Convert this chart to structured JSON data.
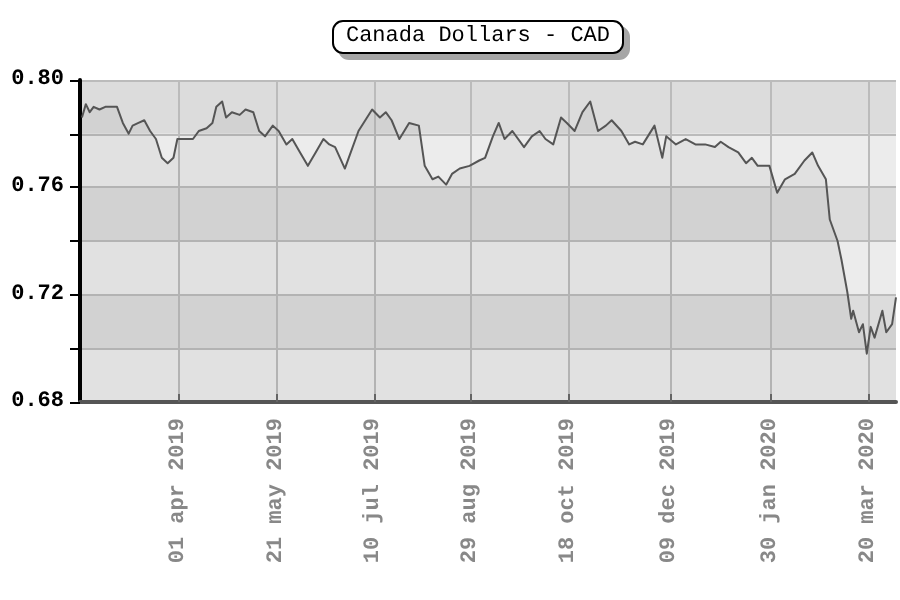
{
  "chart_data": {
    "type": "area",
    "title": "Canada Dollars - CAD",
    "x": [
      "2019-02-10",
      "2019-02-12",
      "2019-02-14",
      "2019-02-16",
      "2019-02-19",
      "2019-02-22",
      "2019-02-26",
      "2019-02-28",
      "2019-03-03",
      "2019-03-06",
      "2019-03-08",
      "2019-03-11",
      "2019-03-14",
      "2019-03-17",
      "2019-03-20",
      "2019-03-23",
      "2019-03-26",
      "2019-03-29",
      "2019-03-31",
      "2019-04-04",
      "2019-04-08",
      "2019-04-11",
      "2019-04-15",
      "2019-04-18",
      "2019-04-20",
      "2019-04-23",
      "2019-04-25",
      "2019-04-28",
      "2019-05-02",
      "2019-05-05",
      "2019-05-09",
      "2019-05-12",
      "2019-05-15",
      "2019-05-19",
      "2019-05-22",
      "2019-05-26",
      "2019-05-29",
      "2019-06-02",
      "2019-06-06",
      "2019-06-10",
      "2019-06-14",
      "2019-06-17",
      "2019-06-20",
      "2019-06-25",
      "2019-06-27",
      "2019-07-02",
      "2019-07-09",
      "2019-07-13",
      "2019-07-16",
      "2019-07-19",
      "2019-07-23",
      "2019-07-28",
      "2019-08-02",
      "2019-08-05",
      "2019-08-09",
      "2019-08-12",
      "2019-08-16",
      "2019-08-19",
      "2019-08-23",
      "2019-08-28",
      "2019-09-02",
      "2019-09-05",
      "2019-09-09",
      "2019-09-12",
      "2019-09-15",
      "2019-09-19",
      "2019-09-25",
      "2019-09-29",
      "2019-10-03",
      "2019-10-06",
      "2019-10-10",
      "2019-10-14",
      "2019-10-17",
      "2019-10-21",
      "2019-10-25",
      "2019-10-29",
      "2019-11-02",
      "2019-11-06",
      "2019-11-09",
      "2019-11-14",
      "2019-11-18",
      "2019-11-21",
      "2019-11-25",
      "2019-12-01",
      "2019-12-05",
      "2019-12-07",
      "2019-12-12",
      "2019-12-17",
      "2019-12-22",
      "2019-12-27",
      "2020-01-01",
      "2020-01-04",
      "2020-01-08",
      "2020-01-13",
      "2020-01-17",
      "2020-01-20",
      "2020-01-23",
      "2020-01-29",
      "2020-02-02",
      "2020-02-06",
      "2020-02-11",
      "2020-02-16",
      "2020-02-20",
      "2020-02-23",
      "2020-02-27",
      "2020-02-29",
      "2020-03-04",
      "2020-03-06",
      "2020-03-09",
      "2020-03-11",
      "2020-03-12",
      "2020-03-15",
      "2020-03-17",
      "2020-03-19",
      "2020-03-21",
      "2020-03-23",
      "2020-03-27",
      "2020-03-29",
      "2020-04-01",
      "2020-04-03"
    ],
    "series": [
      {
        "color": "#555555",
        "values": [
          0.786,
          0.791,
          0.788,
          0.79,
          0.789,
          0.79,
          0.79,
          0.79,
          0.784,
          0.78,
          0.783,
          0.784,
          0.785,
          0.781,
          0.778,
          0.771,
          0.769,
          0.771,
          0.778,
          0.778,
          0.778,
          0.781,
          0.782,
          0.784,
          0.79,
          0.792,
          0.786,
          0.788,
          0.787,
          0.789,
          0.788,
          0.781,
          0.779,
          0.783,
          0.781,
          0.776,
          0.778,
          0.773,
          0.768,
          0.773,
          0.778,
          0.776,
          0.775,
          0.767,
          0.771,
          0.781,
          0.789,
          0.786,
          0.788,
          0.785,
          0.778,
          0.784,
          0.783,
          0.768,
          0.763,
          0.764,
          0.761,
          0.765,
          0.767,
          0.768,
          0.77,
          0.771,
          0.779,
          0.784,
          0.778,
          0.781,
          0.775,
          0.779,
          0.781,
          0.778,
          0.776,
          0.786,
          0.784,
          0.781,
          0.788,
          0.792,
          0.781,
          0.783,
          0.785,
          0.781,
          0.776,
          0.777,
          0.776,
          0.783,
          0.771,
          0.779,
          0.776,
          0.778,
          0.776,
          0.776,
          0.775,
          0.777,
          0.775,
          0.773,
          0.769,
          0.771,
          0.768,
          0.768,
          0.758,
          0.763,
          0.765,
          0.77,
          0.773,
          0.768,
          0.763,
          0.748,
          0.74,
          0.733,
          0.721,
          0.711,
          0.714,
          0.706,
          0.709,
          0.698,
          0.708,
          0.704,
          0.714,
          0.706,
          0.709,
          0.719
        ]
      }
    ],
    "xlim": [
      "2019-02-09",
      "2020-04-03"
    ],
    "xticks": [
      {
        "value": "2019-04-01",
        "label": "01 apr 2019"
      },
      {
        "value": "2019-05-21",
        "label": "21 may 2019"
      },
      {
        "value": "2019-07-10",
        "label": "10 jul 2019"
      },
      {
        "value": "2019-08-29",
        "label": "29 aug 2019"
      },
      {
        "value": "2019-10-18",
        "label": "18 oct 2019"
      },
      {
        "value": "2019-12-09",
        "label": "09 dec 2019"
      },
      {
        "value": "2020-01-30",
        "label": "30 jan 2020"
      },
      {
        "value": "2020-03-20",
        "label": "20 mar 2020"
      }
    ],
    "ylim": [
      0.68,
      0.8
    ],
    "yticks": [
      0.68,
      {
        "value": 0.7,
        "label": null
      },
      0.72,
      {
        "value": 0.74,
        "label": null
      },
      0.76,
      {
        "value": 0.78,
        "label": null
      },
      {
        "value": 0.8,
        "label": "0.80"
      }
    ],
    "grid": true
  }
}
